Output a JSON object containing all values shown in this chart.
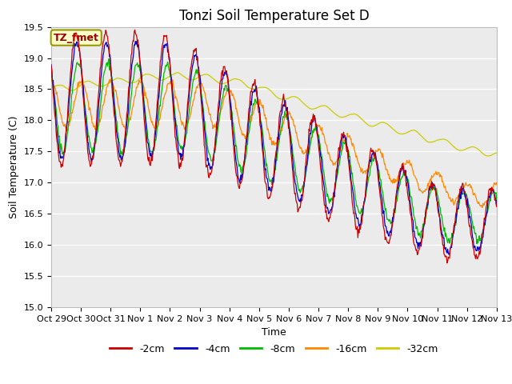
{
  "title": "Tonzi Soil Temperature Set D",
  "xlabel": "Time",
  "ylabel": "Soil Temperature (C)",
  "ylim": [
    15.0,
    19.5
  ],
  "series_colors": {
    "-2cm": "#cc0000",
    "-4cm": "#0000cc",
    "-8cm": "#00bb00",
    "-16cm": "#ff8800",
    "-32cm": "#cccc00"
  },
  "series_labels": [
    "-2cm",
    "-4cm",
    "-8cm",
    "-16cm",
    "-32cm"
  ],
  "annotation_text": "TZ_fmet",
  "annotation_box_color": "#ffffcc",
  "annotation_border_color": "#999900",
  "background_color": "#ffffff",
  "plot_bg_color": "#ebebeb",
  "grid_color": "#ffffff",
  "title_fontsize": 12,
  "axis_fontsize": 9,
  "tick_fontsize": 8,
  "legend_fontsize": 9,
  "x_tick_labels": [
    "Oct 29",
    "Oct 30",
    "Oct 31",
    "Nov 1",
    "Nov 2",
    "Nov 3",
    "Nov 4",
    "Nov 5",
    "Nov 6",
    "Nov 7",
    "Nov 8",
    "Nov 9",
    "Nov 10",
    "Nov 11",
    "Nov 12",
    "Nov 13"
  ],
  "x_tick_positions": [
    0,
    1,
    2,
    3,
    4,
    5,
    6,
    7,
    8,
    9,
    10,
    11,
    12,
    13,
    14,
    15
  ],
  "yticks": [
    15.0,
    15.5,
    16.0,
    16.5,
    17.0,
    17.5,
    18.0,
    18.5,
    19.0,
    19.5
  ]
}
